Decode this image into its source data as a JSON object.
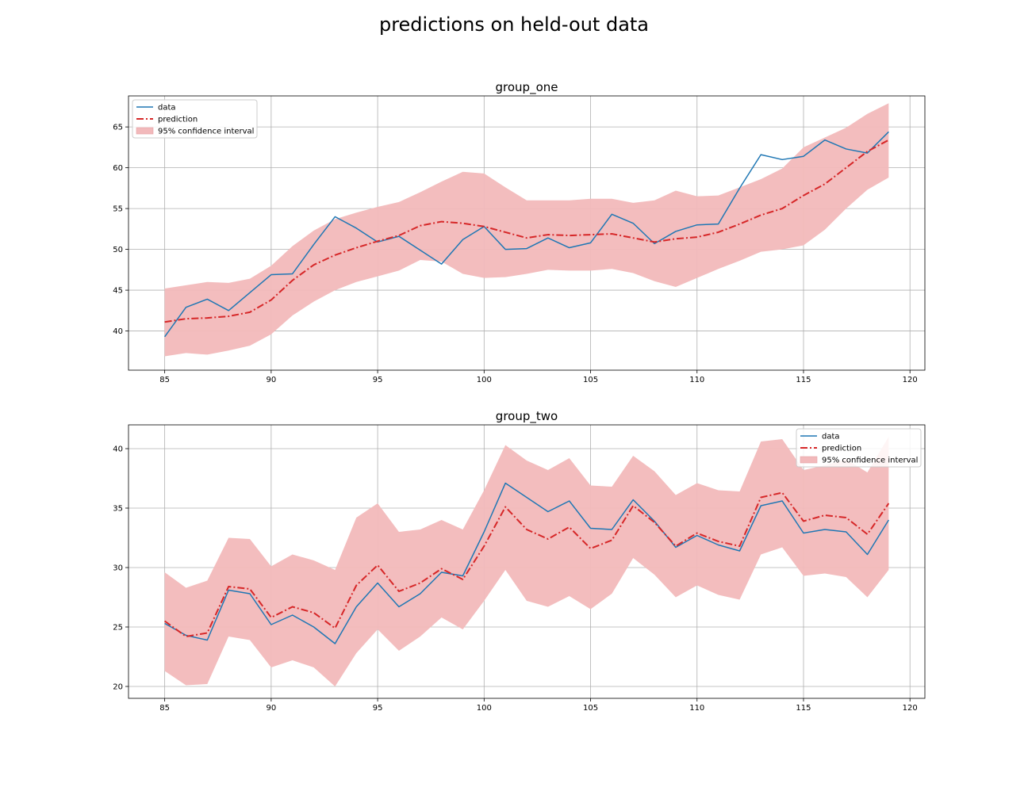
{
  "figure": {
    "title": "predictions on held-out data"
  },
  "colors": {
    "data": "#1f77b4",
    "prediction": "#d62728",
    "band": "#f2b9bb"
  },
  "chart_data": [
    {
      "type": "line",
      "title": "group_one",
      "xlabel": "",
      "ylabel": "",
      "xlim": [
        83.3,
        120.7
      ],
      "ylim": [
        35.2,
        68.8
      ],
      "xticks": [
        85,
        90,
        95,
        100,
        105,
        110,
        115,
        120
      ],
      "yticks": [
        40,
        45,
        50,
        55,
        60,
        65
      ],
      "grid": true,
      "legend_loc": "upper left",
      "legend": [
        "data",
        "prediction",
        "95% confidence interval"
      ],
      "x": [
        85,
        86,
        87,
        88,
        89,
        90,
        91,
        92,
        93,
        94,
        95,
        96,
        97,
        98,
        99,
        100,
        101,
        102,
        103,
        104,
        105,
        106,
        107,
        108,
        109,
        110,
        111,
        112,
        113,
        114,
        115,
        116,
        117,
        118,
        119
      ],
      "series": [
        {
          "name": "data",
          "style": "solid",
          "values": [
            39.3,
            42.9,
            43.9,
            42.5,
            44.7,
            46.9,
            47.0,
            50.6,
            54.0,
            52.6,
            50.9,
            51.6,
            49.9,
            48.2,
            51.2,
            52.8,
            50.0,
            50.1,
            51.4,
            50.2,
            50.8,
            54.3,
            53.2,
            50.7,
            52.2,
            53.0,
            53.1,
            57.5,
            61.6,
            61.0,
            61.4,
            63.4,
            62.3,
            61.8,
            64.4
          ]
        },
        {
          "name": "prediction",
          "style": "dashdot",
          "values": [
            41.1,
            41.5,
            41.6,
            41.8,
            42.3,
            43.8,
            46.2,
            48.1,
            49.3,
            50.2,
            51.0,
            51.7,
            52.9,
            53.4,
            53.2,
            52.8,
            52.1,
            51.4,
            51.8,
            51.7,
            51.8,
            51.9,
            51.4,
            50.9,
            51.3,
            51.5,
            52.1,
            53.1,
            54.2,
            55.0,
            56.6,
            58.0,
            60.0,
            62.0,
            63.4
          ]
        }
      ],
      "interval": {
        "name": "95% confidence interval",
        "lower": [
          36.9,
          37.3,
          37.1,
          37.6,
          38.2,
          39.6,
          41.9,
          43.6,
          45.0,
          46.0,
          46.7,
          47.4,
          48.7,
          48.5,
          47.0,
          46.5,
          46.6,
          47.0,
          47.5,
          47.4,
          47.4,
          47.6,
          47.1,
          46.1,
          45.4,
          46.5,
          47.6,
          48.6,
          49.7,
          50.0,
          50.5,
          52.4,
          55.0,
          57.3,
          58.8
        ],
        "upper": [
          45.2,
          45.6,
          46.0,
          45.9,
          46.4,
          48.0,
          50.4,
          52.3,
          53.7,
          54.5,
          55.2,
          55.8,
          57.0,
          58.3,
          59.5,
          59.3,
          57.6,
          56.0,
          56.0,
          56.0,
          56.2,
          56.2,
          55.7,
          56.0,
          57.2,
          56.5,
          56.6,
          57.6,
          58.6,
          59.9,
          62.5,
          63.7,
          64.9,
          66.6,
          67.9
        ]
      }
    },
    {
      "type": "line",
      "title": "group_two",
      "xlabel": "",
      "ylabel": "",
      "xlim": [
        83.3,
        120.7
      ],
      "ylim": [
        19.0,
        42.0
      ],
      "xticks": [
        85,
        90,
        95,
        100,
        105,
        110,
        115,
        120
      ],
      "yticks": [
        20,
        25,
        30,
        35,
        40
      ],
      "grid": true,
      "legend_loc": "upper right",
      "legend": [
        "data",
        "prediction",
        "95% confidence interval"
      ],
      "x": [
        85,
        86,
        87,
        88,
        89,
        90,
        91,
        92,
        93,
        94,
        95,
        96,
        97,
        98,
        99,
        100,
        101,
        102,
        103,
        104,
        105,
        106,
        107,
        108,
        109,
        110,
        111,
        112,
        113,
        114,
        115,
        116,
        117,
        118,
        119
      ],
      "series": [
        {
          "name": "data",
          "style": "solid",
          "values": [
            25.3,
            24.3,
            23.9,
            28.1,
            27.8,
            25.2,
            26.0,
            25.0,
            23.6,
            26.7,
            28.7,
            26.7,
            27.8,
            29.6,
            29.3,
            33.0,
            37.1,
            35.9,
            34.7,
            35.6,
            33.3,
            33.2,
            35.7,
            33.9,
            31.7,
            32.7,
            31.9,
            31.4,
            35.2,
            35.6,
            32.9,
            33.2,
            33.0,
            31.1,
            34.0
          ]
        },
        {
          "name": "prediction",
          "style": "dashdot",
          "values": [
            25.5,
            24.2,
            24.5,
            28.4,
            28.2,
            25.8,
            26.7,
            26.2,
            24.9,
            28.5,
            30.2,
            28.0,
            28.7,
            29.9,
            29.0,
            31.8,
            35.1,
            33.2,
            32.4,
            33.4,
            31.6,
            32.3,
            35.2,
            33.8,
            31.8,
            32.9,
            32.2,
            31.8,
            35.9,
            36.3,
            33.9,
            34.4,
            34.2,
            32.8,
            35.4
          ]
        }
      ],
      "interval": {
        "name": "95% confidence interval",
        "lower": [
          21.3,
          20.1,
          20.2,
          24.2,
          23.9,
          21.6,
          22.2,
          21.6,
          20.0,
          22.8,
          24.8,
          23.0,
          24.2,
          25.8,
          24.8,
          27.2,
          29.8,
          27.2,
          26.7,
          27.6,
          26.5,
          27.8,
          30.8,
          29.4,
          27.5,
          28.5,
          27.7,
          27.3,
          31.1,
          31.7,
          29.3,
          29.5,
          29.2,
          27.5,
          29.8
        ],
        "upper": [
          29.6,
          28.3,
          28.9,
          32.5,
          32.4,
          30.1,
          31.1,
          30.6,
          29.8,
          34.2,
          35.4,
          33.0,
          33.2,
          34.0,
          33.2,
          36.5,
          40.3,
          39.0,
          38.2,
          39.2,
          36.9,
          36.8,
          39.4,
          38.1,
          36.1,
          37.1,
          36.5,
          36.4,
          40.6,
          40.8,
          38.2,
          38.6,
          39.1,
          38.0,
          41.0
        ]
      }
    }
  ]
}
